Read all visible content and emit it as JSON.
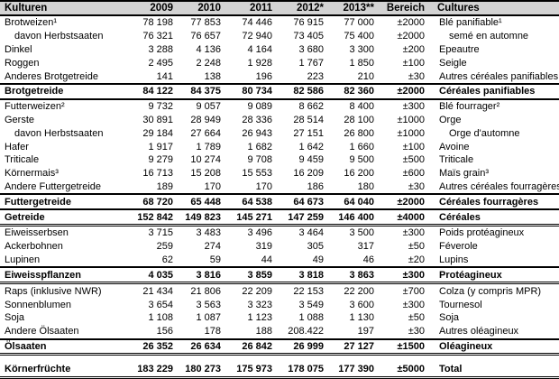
{
  "colors": {
    "background": "#ffffff",
    "header_bg": "#d3d3d3",
    "border": "#000000",
    "text": "#000000"
  },
  "table": {
    "headers": [
      {
        "key": "kulturen",
        "label": "Kulturen",
        "align": "left"
      },
      {
        "key": "2009",
        "label": "2009",
        "align": "right"
      },
      {
        "key": "2010",
        "label": "2010",
        "align": "right"
      },
      {
        "key": "2011",
        "label": "2011",
        "align": "right"
      },
      {
        "key": "2012",
        "label": "2012*",
        "align": "right"
      },
      {
        "key": "2013",
        "label": "2013**",
        "align": "right"
      },
      {
        "key": "bereich",
        "label": "Bereich",
        "align": "right"
      },
      {
        "key": "cultures",
        "label": "Cultures",
        "align": "left"
      }
    ],
    "rows": [
      {
        "de": "Brotweizen¹",
        "values": [
          "78 198",
          "77 853",
          "74 446",
          "76 915",
          "77 000"
        ],
        "bereich": "±2000",
        "fr": "Blé panifiable¹",
        "indent": false,
        "bold": false,
        "border_top": false,
        "border_bottom": ""
      },
      {
        "de": "davon Herbstsaaten",
        "values": [
          "76 321",
          "76 657",
          "72 940",
          "73 405",
          "75 400"
        ],
        "bereich": "±2000",
        "fr": "semé en automne",
        "indent": true,
        "bold": false,
        "border_top": false,
        "border_bottom": ""
      },
      {
        "de": "Dinkel",
        "values": [
          "3 288",
          "4 136",
          "4 164",
          "3 680",
          "3 300"
        ],
        "bereich": "±200",
        "fr": "Epeautre",
        "indent": false,
        "bold": false,
        "border_top": false,
        "border_bottom": ""
      },
      {
        "de": "Roggen",
        "values": [
          "2 495",
          "2 248",
          "1 928",
          "1 767",
          "1 850"
        ],
        "bereich": "±100",
        "fr": "Seigle",
        "indent": false,
        "bold": false,
        "border_top": false,
        "border_bottom": ""
      },
      {
        "de": "Anderes Brotgetreide",
        "values": [
          "141",
          "138",
          "196",
          "223",
          "210"
        ],
        "bereich": "±30",
        "fr": "Autres céréales panifiables",
        "indent": false,
        "bold": false,
        "border_top": false,
        "border_bottom": ""
      },
      {
        "de": "Brotgetreide",
        "values": [
          "84 122",
          "84 375",
          "80 734",
          "82 586",
          "82 360"
        ],
        "bereich": "±2000",
        "fr": "Céréales panifiables",
        "indent": false,
        "bold": true,
        "border_top": true,
        "border_bottom": "thick"
      },
      {
        "de": "Futterweizen²",
        "values": [
          "9 732",
          "9 057",
          "9 089",
          "8 662",
          "8 400"
        ],
        "bereich": "±300",
        "fr": "Blé fourrager²",
        "indent": false,
        "bold": false,
        "border_top": false,
        "border_bottom": ""
      },
      {
        "de": "Gerste",
        "values": [
          "30 891",
          "28 949",
          "28 336",
          "28 514",
          "28 100"
        ],
        "bereich": "±1000",
        "fr": "Orge",
        "indent": false,
        "bold": false,
        "border_top": false,
        "border_bottom": ""
      },
      {
        "de": "davon Herbstsaaten",
        "values": [
          "29 184",
          "27 664",
          "26 943",
          "27 151",
          "26 800"
        ],
        "bereich": "±1000",
        "fr": "Orge d'automne",
        "indent": true,
        "bold": false,
        "border_top": false,
        "border_bottom": ""
      },
      {
        "de": "Hafer",
        "values": [
          "1 917",
          "1 789",
          "1 682",
          "1 642",
          "1 660"
        ],
        "bereich": "±100",
        "fr": "Avoine",
        "indent": false,
        "bold": false,
        "border_top": false,
        "border_bottom": ""
      },
      {
        "de": "Triticale",
        "values": [
          "9 279",
          "10 274",
          "9 708",
          "9 459",
          "9 500"
        ],
        "bereich": "±500",
        "fr": "Triticale",
        "indent": false,
        "bold": false,
        "border_top": false,
        "border_bottom": ""
      },
      {
        "de": "Körnermais³",
        "values": [
          "16 713",
          "15 208",
          "15 553",
          "16 209",
          "16 200"
        ],
        "bereich": "±600",
        "fr": "Maïs grain³",
        "indent": false,
        "bold": false,
        "border_top": false,
        "border_bottom": ""
      },
      {
        "de": "Andere Futtergetreide",
        "values": [
          "189",
          "170",
          "170",
          "186",
          "180"
        ],
        "bereich": "±30",
        "fr": "Autres céréales fourragères",
        "indent": false,
        "bold": false,
        "border_top": false,
        "border_bottom": ""
      },
      {
        "de": "Futtergetreide",
        "values": [
          "68 720",
          "65 448",
          "64 538",
          "64 673",
          "64 040"
        ],
        "bereich": "±2000",
        "fr": "Céréales fourragères",
        "indent": false,
        "bold": true,
        "border_top": true,
        "border_bottom": ""
      },
      {
        "de": "Getreide",
        "values": [
          "152 842",
          "149 823",
          "145 271",
          "147 259",
          "146 400"
        ],
        "bereich": "±4000",
        "fr": "Céréales",
        "indent": false,
        "bold": true,
        "border_top": true,
        "border_bottom": "double"
      },
      {
        "de": "Eiweisserbsen",
        "values": [
          "3 715",
          "3 483",
          "3 496",
          "3 464",
          "3 500"
        ],
        "bereich": "±300",
        "fr": "Poids protéagineux",
        "indent": false,
        "bold": false,
        "border_top": false,
        "border_bottom": ""
      },
      {
        "de": "Ackerbohnen",
        "values": [
          "259",
          "274",
          "319",
          "305",
          "317"
        ],
        "bereich": "±50",
        "fr": "Féverole",
        "indent": false,
        "bold": false,
        "border_top": false,
        "border_bottom": ""
      },
      {
        "de": "Lupinen",
        "values": [
          "62",
          "59",
          "44",
          "49",
          "46"
        ],
        "bereich": "±20",
        "fr": "Lupins",
        "indent": false,
        "bold": false,
        "border_top": false,
        "border_bottom": ""
      },
      {
        "de": "Eiweisspflanzen",
        "values": [
          "4 035",
          "3 816",
          "3 859",
          "3 818",
          "3 863"
        ],
        "bereich": "±300",
        "fr": "Protéagineux",
        "indent": false,
        "bold": true,
        "border_top": true,
        "border_bottom": "double"
      },
      {
        "de": "Raps (inklusive NWR)",
        "values": [
          "21 434",
          "21 806",
          "22 209",
          "22 153",
          "22 200"
        ],
        "bereich": "±700",
        "fr": "Colza (y compris MPR)",
        "indent": false,
        "bold": false,
        "border_top": false,
        "border_bottom": ""
      },
      {
        "de": "Sonnenblumen",
        "values": [
          "3 654",
          "3 563",
          "3 323",
          "3 549",
          "3 600"
        ],
        "bereich": "±300",
        "fr": "Tournesol",
        "indent": false,
        "bold": false,
        "border_top": false,
        "border_bottom": ""
      },
      {
        "de": "Soja",
        "values": [
          "1 108",
          "1 087",
          "1 123",
          "1 088",
          "1 130"
        ],
        "bereich": "±50",
        "fr": "Soja",
        "indent": false,
        "bold": false,
        "border_top": false,
        "border_bottom": ""
      },
      {
        "de": "Andere Ölsaaten",
        "values": [
          "156",
          "178",
          "188",
          "208.422",
          "197"
        ],
        "bereich": "±30",
        "fr": "Autres oléagineux",
        "indent": false,
        "bold": false,
        "border_top": false,
        "border_bottom": ""
      },
      {
        "de": "Ölsaaten",
        "values": [
          "26 352",
          "26 634",
          "26 842",
          "26 999",
          "27 127"
        ],
        "bereich": "±1500",
        "fr": "Oléagineux",
        "indent": false,
        "bold": true,
        "border_top": true,
        "border_bottom": "double"
      },
      {
        "de": "Körnerfrüchte",
        "values": [
          "183 229",
          "180 273",
          "175 973",
          "178 075",
          "177 390"
        ],
        "bereich": "±5000",
        "fr": "Total",
        "indent": false,
        "bold": true,
        "border_top": false,
        "border_bottom": "double",
        "spacer_before": true
      }
    ]
  }
}
